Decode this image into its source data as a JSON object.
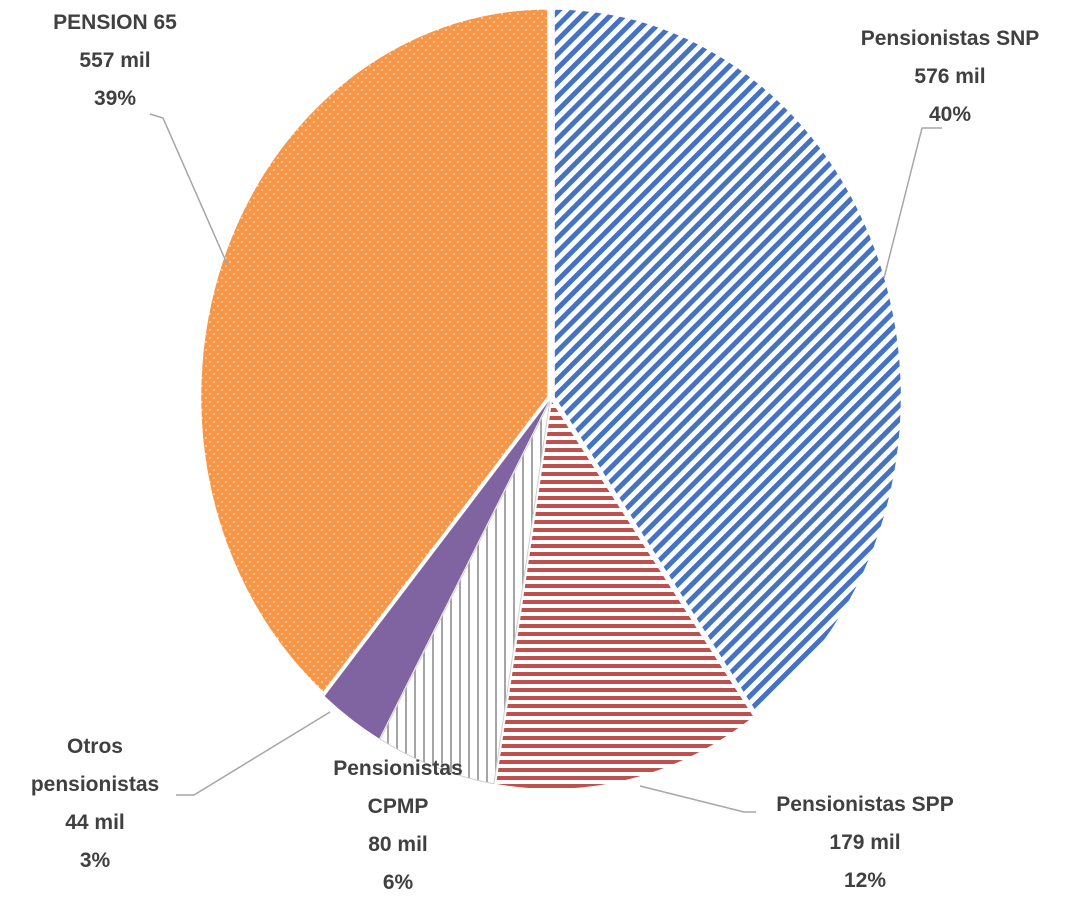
{
  "chart_data": {
    "type": "pie",
    "categories": [
      "Pensionistas SNP",
      "Pensionistas SPP",
      "Pensionistas CPMP",
      "Otros pensionistas",
      "PENSION 65"
    ],
    "values": [
      576,
      179,
      80,
      44,
      557
    ],
    "value_labels": [
      "576 mil",
      "179 mil",
      "80 mil",
      "44 mil",
      "557 mil"
    ],
    "percentages": [
      40,
      12,
      6,
      3,
      39
    ],
    "percentage_labels": [
      "40%",
      "12%",
      "6%",
      "3%",
      "39%"
    ],
    "colors": [
      "#4472c4",
      "#c0504d",
      "#a5a5a5",
      "#8064a2",
      "#f79646"
    ]
  }
}
